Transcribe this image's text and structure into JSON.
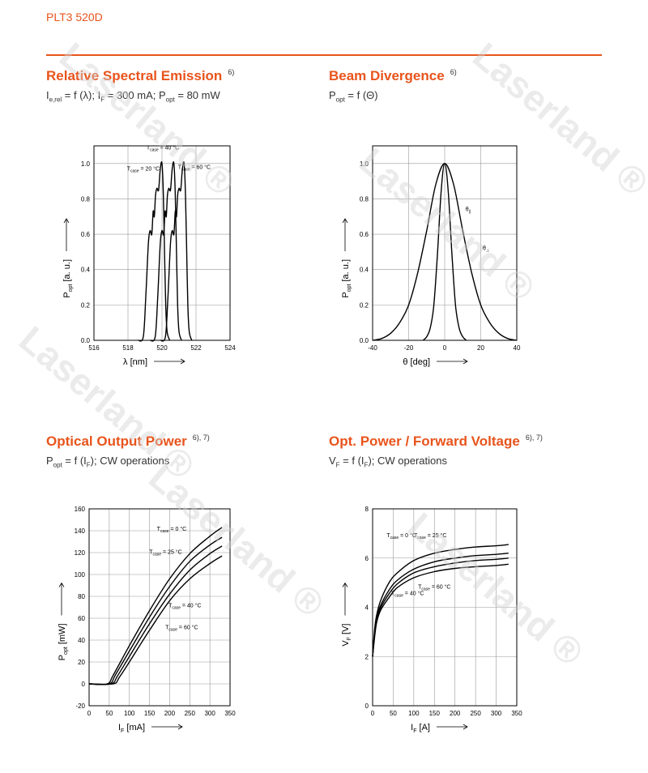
{
  "header": {
    "product": "PLT3 520D"
  },
  "watermark": {
    "text": "Laserland",
    "symbol": "®"
  },
  "panels": [
    {
      "title": "Relative Spectral Emission",
      "title_sup": "6)",
      "subtitle": "I_e,rel = f (λ); I_F = 300 mA; P_opt = 80 mW",
      "subtitle_parts": [
        {
          "t": "I"
        },
        {
          "s": "e,rel"
        },
        {
          "t": " = f (λ); I"
        },
        {
          "s": "F"
        },
        {
          "t": " = 300 mA; P"
        },
        {
          "s": "opt"
        },
        {
          "t": " = 80 mW"
        }
      ]
    },
    {
      "title": "Beam Divergence",
      "title_sup": "6)",
      "subtitle": "P_opt = f (Θ)",
      "subtitle_parts": [
        {
          "t": "P"
        },
        {
          "s": "opt"
        },
        {
          "t": " = f (Θ)"
        }
      ]
    },
    {
      "title": "Optical Output Power",
      "title_sup": "6), 7)",
      "subtitle": "P_opt = f (I_F); CW operations",
      "subtitle_parts": [
        {
          "t": "P"
        },
        {
          "s": "opt"
        },
        {
          "t": " = f (I"
        },
        {
          "s": "F"
        },
        {
          "t": "); CW operations"
        }
      ]
    },
    {
      "title": "Opt. Power / Forward Voltage",
      "title_sup": "6), 7)",
      "subtitle": "V_F = f (I_F); CW operations",
      "subtitle_parts": [
        {
          "t": "V"
        },
        {
          "s": "F"
        },
        {
          "t": " = f (I"
        },
        {
          "s": "F"
        },
        {
          "t": "); CW operations"
        }
      ]
    }
  ],
  "chart_data": [
    {
      "type": "line",
      "xlim": [
        516,
        524
      ],
      "ylim": [
        0,
        1.1
      ],
      "xticks": [
        516,
        518,
        520,
        522,
        524
      ],
      "yticks": [
        0.0,
        0.2,
        0.4,
        0.6,
        0.8,
        1.0
      ],
      "xticklabels": [
        "516",
        "518",
        "520",
        "522",
        "524"
      ],
      "yticklabels": [
        "0.0",
        "0.2",
        "0.4",
        "0.6",
        "0.8",
        "1.0"
      ],
      "xlabel": "λ [nm]",
      "ylabel": "P_opt [a. u.]",
      "grid": true,
      "series": [
        {
          "name": "T_case = 20 °C",
          "x": [
            518.6,
            518.9,
            519.05,
            519.2,
            519.3,
            519.4,
            519.48,
            519.55,
            519.62,
            519.7,
            519.8,
            519.9,
            520.0,
            520.08,
            520.15,
            520.22,
            520.3,
            520.45
          ],
          "y": [
            0.0,
            0.02,
            0.25,
            0.55,
            0.62,
            0.6,
            0.73,
            0.7,
            0.82,
            0.86,
            0.85,
            0.97,
            1.0,
            0.82,
            0.5,
            0.2,
            0.05,
            0.0
          ]
        },
        {
          "name": "T_case = 40 °C",
          "x": [
            519.3,
            519.6,
            519.75,
            519.9,
            520.0,
            520.1,
            520.18,
            520.25,
            520.32,
            520.4,
            520.5,
            520.6,
            520.7,
            520.78,
            520.85,
            520.92,
            521.0,
            521.15
          ],
          "y": [
            0.0,
            0.02,
            0.25,
            0.55,
            0.62,
            0.6,
            0.73,
            0.7,
            0.82,
            0.86,
            0.85,
            0.97,
            1.0,
            0.82,
            0.5,
            0.2,
            0.05,
            0.0
          ]
        },
        {
          "name": "T_case = 60 °C",
          "x": [
            519.9,
            520.2,
            520.35,
            520.5,
            520.6,
            520.7,
            520.78,
            520.85,
            520.92,
            521.0,
            521.1,
            521.2,
            521.3,
            521.38,
            521.45,
            521.52,
            521.6,
            521.75
          ],
          "y": [
            0.0,
            0.02,
            0.25,
            0.55,
            0.62,
            0.6,
            0.73,
            0.7,
            0.82,
            0.86,
            0.85,
            0.97,
            1.0,
            0.82,
            0.5,
            0.2,
            0.05,
            0.0
          ]
        }
      ],
      "annotations": [
        {
          "text": "T_case = 20 °C",
          "x": 518.9,
          "y": 0.96
        },
        {
          "text": "T_case = 40 °C",
          "x": 520.05,
          "y": 1.08
        },
        {
          "text": "T_case = 60 °C",
          "x": 521.9,
          "y": 0.97
        }
      ]
    },
    {
      "type": "line",
      "xlim": [
        -40,
        40
      ],
      "ylim": [
        0,
        1.1
      ],
      "xticks": [
        -40,
        -20,
        0,
        20,
        40
      ],
      "yticks": [
        0.0,
        0.2,
        0.4,
        0.6,
        0.8,
        1.0
      ],
      "xticklabels": [
        "-40",
        "-20",
        "0",
        "20",
        "40"
      ],
      "yticklabels": [
        "0.0",
        "0.2",
        "0.4",
        "0.6",
        "0.8",
        "1.0"
      ],
      "xlabel": "θ [deg]",
      "ylabel": "P_opt [a. u.]",
      "grid": true,
      "series": [
        {
          "name": "θ_∥",
          "x": [
            -12,
            -10,
            -8,
            -6,
            -4,
            -2,
            0,
            2,
            4,
            6,
            8,
            10,
            12
          ],
          "y": [
            0.0,
            0.02,
            0.07,
            0.2,
            0.49,
            0.84,
            1.0,
            0.84,
            0.49,
            0.2,
            0.07,
            0.02,
            0.0
          ]
        },
        {
          "name": "θ_⊥",
          "x": [
            -40,
            -35,
            -30,
            -25,
            -20,
            -15,
            -10,
            -5,
            0,
            5,
            10,
            15,
            20,
            25,
            30,
            35,
            40
          ],
          "y": [
            0.0,
            0.01,
            0.04,
            0.1,
            0.2,
            0.38,
            0.62,
            0.88,
            1.0,
            0.88,
            0.62,
            0.38,
            0.2,
            0.1,
            0.04,
            0.01,
            0.0
          ]
        }
      ],
      "annotations": [
        {
          "text": "θ_∥",
          "x": 13,
          "y": 0.73
        },
        {
          "text": "θ_⊥",
          "x": 23,
          "y": 0.51
        }
      ]
    },
    {
      "type": "line",
      "xlim": [
        0,
        350
      ],
      "ylim": [
        -20,
        160
      ],
      "xticks": [
        0,
        50,
        100,
        150,
        200,
        250,
        300,
        350
      ],
      "yticks": [
        -20,
        0,
        20,
        40,
        60,
        80,
        100,
        120,
        140,
        160
      ],
      "xticklabels": [
        "0",
        "50",
        "100",
        "150",
        "200",
        "250",
        "300",
        "350"
      ],
      "yticklabels": [
        "-20",
        "0",
        "20",
        "40",
        "60",
        "80",
        "100",
        "120",
        "140",
        "160"
      ],
      "xlabel": "I_F [mA]",
      "ylabel": "P_opt [mW]",
      "grid": true,
      "series": [
        {
          "name": "T_case = 0 °C",
          "x": [
            0,
            45,
            60,
            100,
            150,
            200,
            250,
            300,
            330
          ],
          "y": [
            0,
            0,
            8,
            35,
            67,
            96,
            119,
            135,
            143
          ]
        },
        {
          "name": "T_case = 25 °C",
          "x": [
            0,
            50,
            65,
            100,
            150,
            200,
            250,
            300,
            330
          ],
          "y": [
            0,
            0,
            8,
            30,
            61,
            89,
            112,
            127,
            134
          ]
        },
        {
          "name": "T_case = 40 °C",
          "x": [
            0,
            55,
            70,
            100,
            150,
            200,
            250,
            300,
            330
          ],
          "y": [
            0,
            0,
            7,
            25,
            55,
            82,
            104,
            119,
            126
          ]
        },
        {
          "name": "T_case = 60 °C",
          "x": [
            0,
            60,
            75,
            100,
            150,
            200,
            250,
            300,
            330
          ],
          "y": [
            0,
            0,
            6,
            20,
            49,
            76,
            96,
            110,
            117
          ]
        }
      ],
      "annotations": [
        {
          "text": "T_case = 0 °C",
          "x": 205,
          "y": 140
        },
        {
          "text": "T_case = 25 °C",
          "x": 190,
          "y": 119
        },
        {
          "text": "T_case = 40 °C",
          "x": 238,
          "y": 70
        },
        {
          "text": "T_case = 60 °C",
          "x": 230,
          "y": 50
        }
      ]
    },
    {
      "type": "line",
      "xlim": [
        0,
        350
      ],
      "ylim": [
        0,
        8
      ],
      "xticks": [
        0,
        50,
        100,
        150,
        200,
        250,
        300,
        350
      ],
      "yticks": [
        0,
        2,
        4,
        6,
        8
      ],
      "xticklabels": [
        "0",
        "50",
        "100",
        "150",
        "200",
        "250",
        "300",
        "350"
      ],
      "yticklabels": [
        "0",
        "2",
        "4",
        "6",
        "8"
      ],
      "xlabel": "I_F [A]",
      "ylabel": "V_F [V]",
      "grid": true,
      "series": [
        {
          "name": "T_case = 0 °C",
          "x": [
            0,
            5,
            10,
            20,
            40,
            60,
            100,
            150,
            200,
            250,
            300,
            330
          ],
          "y": [
            2.0,
            3.1,
            3.7,
            4.3,
            5.0,
            5.4,
            5.9,
            6.2,
            6.35,
            6.45,
            6.5,
            6.55
          ]
        },
        {
          "name": "T_case = 25 °C",
          "x": [
            0,
            5,
            10,
            20,
            40,
            60,
            100,
            150,
            200,
            250,
            300,
            330
          ],
          "y": [
            2.0,
            3.0,
            3.6,
            4.1,
            4.7,
            5.1,
            5.55,
            5.85,
            6.0,
            6.1,
            6.15,
            6.2
          ]
        },
        {
          "name": "T_case = 40 °C",
          "x": [
            0,
            5,
            10,
            20,
            40,
            60,
            100,
            150,
            200,
            250,
            300,
            330
          ],
          "y": [
            2.0,
            2.9,
            3.5,
            4.0,
            4.55,
            4.95,
            5.4,
            5.65,
            5.8,
            5.9,
            5.95,
            6.0
          ]
        },
        {
          "name": "T_case = 60 °C",
          "x": [
            0,
            5,
            10,
            20,
            40,
            60,
            100,
            150,
            200,
            250,
            300,
            330
          ],
          "y": [
            2.0,
            2.8,
            3.4,
            3.9,
            4.4,
            4.8,
            5.2,
            5.45,
            5.58,
            5.65,
            5.7,
            5.75
          ]
        }
      ],
      "annotations": [
        {
          "text": "T_case = 0 °C",
          "x": 70,
          "y": 6.85
        },
        {
          "text": "T_case = 25 °C",
          "x": 140,
          "y": 6.85
        },
        {
          "text": "T_case = 40 °C",
          "x": 85,
          "y": 4.5
        },
        {
          "text": "T_case = 60 °C",
          "x": 150,
          "y": 4.75
        }
      ]
    }
  ]
}
